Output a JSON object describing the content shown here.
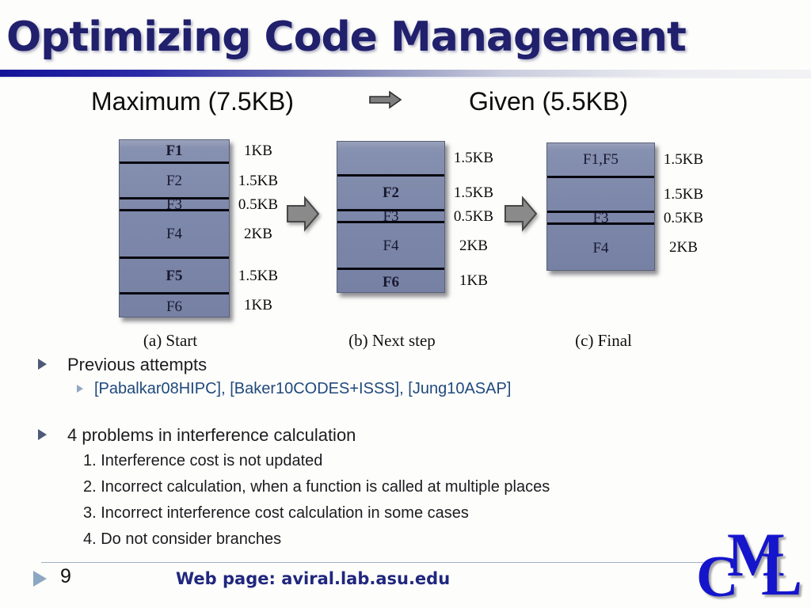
{
  "slide": {
    "title": "Optimizing Code Management"
  },
  "header_row": {
    "left": "Maximum (7.5KB)",
    "right": "Given (5.5KB)",
    "arrow_icon": "right-block-arrow"
  },
  "diagrams": [
    {
      "caption": "(a) Start",
      "blocks": [
        {
          "label": "F1",
          "size": "1KB",
          "kb": 1,
          "bold": true
        },
        {
          "label": "F2",
          "size": "1.5KB",
          "kb": 1.5,
          "bold": false
        },
        {
          "label": "F3",
          "size": "0.5KB",
          "kb": 0.5,
          "bold": false
        },
        {
          "label": "F4",
          "size": "2KB",
          "kb": 2,
          "bold": false
        },
        {
          "label": "F5",
          "size": "1.5KB",
          "kb": 1.5,
          "bold": true
        },
        {
          "label": "F6",
          "size": "1KB",
          "kb": 1,
          "bold": false
        }
      ]
    },
    {
      "caption": "(b) Next step",
      "blocks": [
        {
          "label": "",
          "size": "1.5KB",
          "kb": 1.5,
          "bold": false
        },
        {
          "label": "F2",
          "size": "1.5KB",
          "kb": 1.5,
          "bold": true
        },
        {
          "label": "F3",
          "size": "0.5KB",
          "kb": 0.5,
          "bold": false
        },
        {
          "label": "F4",
          "size": "2KB",
          "kb": 2,
          "bold": false
        },
        {
          "label": "F6",
          "size": "1KB",
          "kb": 1,
          "bold": true
        }
      ]
    },
    {
      "caption": "(c) Final",
      "blocks": [
        {
          "label": "F1,F5",
          "size": "1.5KB",
          "kb": 1.5,
          "bold": false
        },
        {
          "label": "",
          "size": "1.5KB",
          "kb": 1.5,
          "bold": false
        },
        {
          "label": "F3",
          "size": "0.5KB",
          "kb": 0.5,
          "bold": false
        },
        {
          "label": "F4",
          "size": "2KB",
          "kb": 2,
          "bold": false
        }
      ]
    }
  ],
  "bullets": {
    "level1_a": "Previous attempts",
    "citations": "[Pabalkar08HIPC], [Baker10CODES+ISSS], [Jung10ASAP]",
    "level1_b": "4 problems in interference calculation",
    "numbered": [
      "1. Interference cost is not updated",
      "2. Incorrect calculation, when a function is called at multiple places",
      "3. Incorrect interference cost calculation in some cases",
      "4. Do not consider branches"
    ]
  },
  "footer": {
    "page_number": "9",
    "web_text": "Web page:  aviral.lab.asu.edu"
  },
  "logo": {
    "letters": [
      "C",
      "M",
      "L"
    ]
  },
  "colors": {
    "title_navy": "#20206d",
    "block_fill": "#7d88aa",
    "citation_blue": "#1F497D",
    "logo_blue": "#1515cc",
    "arrow_gray": "#858585"
  }
}
